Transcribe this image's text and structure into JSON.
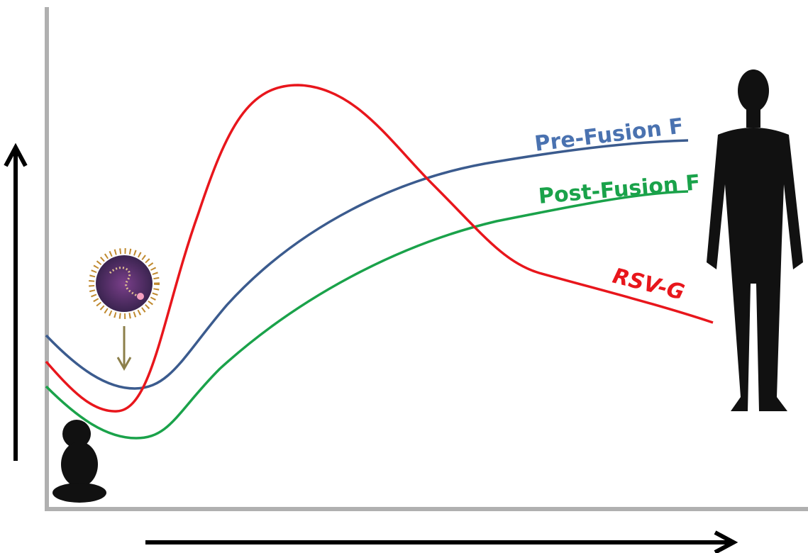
{
  "curves": [
    {
      "label": "Pre-Fusion F"
    },
    {
      "label": "Post-Fusion F"
    },
    {
      "label": "RSV-G"
    }
  ]
}
